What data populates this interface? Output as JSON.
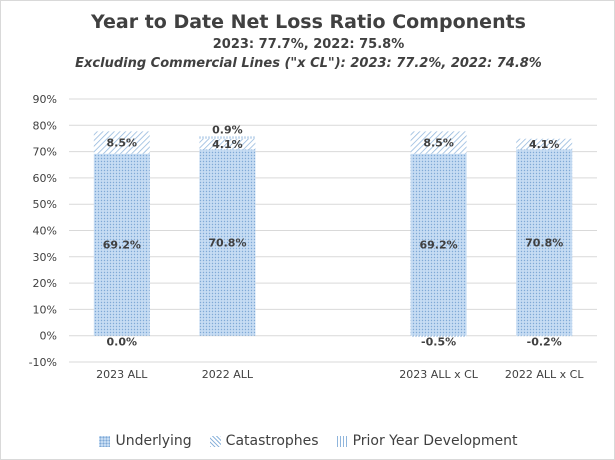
{
  "chart_data": {
    "type": "bar",
    "stacked": true,
    "title": "Year to Date Net Loss Ratio Components",
    "subtitle": "2023: 77.7%, 2022: 75.8%",
    "subtitle2": "Excluding Commercial Lines (\"x CL\"): 2023: 77.2%, 2022: 74.8%",
    "categories": [
      "2023 ALL",
      "2022 ALL",
      "",
      "2023 ALL x CL",
      "2022 ALL x CL"
    ],
    "series": [
      {
        "name": "Underlying",
        "values": [
          69.2,
          70.8,
          null,
          69.2,
          70.8
        ],
        "labels": [
          "69.2%",
          "70.8%",
          "",
          "69.2%",
          "70.8%"
        ]
      },
      {
        "name": "Catastrophes",
        "values": [
          8.5,
          4.1,
          null,
          8.5,
          4.1
        ],
        "labels": [
          "8.5%",
          "4.1%",
          "",
          "8.5%",
          "4.1%"
        ]
      },
      {
        "name": "Prior Year Development",
        "values": [
          0.0,
          0.9,
          null,
          -0.5,
          -0.2
        ],
        "labels": [
          "0.0%",
          "0.9%",
          "",
          "-0.5%",
          "-0.2%"
        ]
      }
    ],
    "y_ticks": [
      "90%",
      "80%",
      "70%",
      "60%",
      "50%",
      "40%",
      "30%",
      "20%",
      "10%",
      "0%",
      "-10%"
    ],
    "ylim": [
      -10,
      90
    ],
    "ylabel": "",
    "xlabel": "",
    "grid": true,
    "legend_position": "bottom",
    "colors": {
      "underlying_fill": "#c6dcf3",
      "underlying_dot": "#7fa9d6",
      "pattern_line": "#8fb5dc",
      "grid": "#d9d9d9",
      "text": "#404040"
    }
  }
}
